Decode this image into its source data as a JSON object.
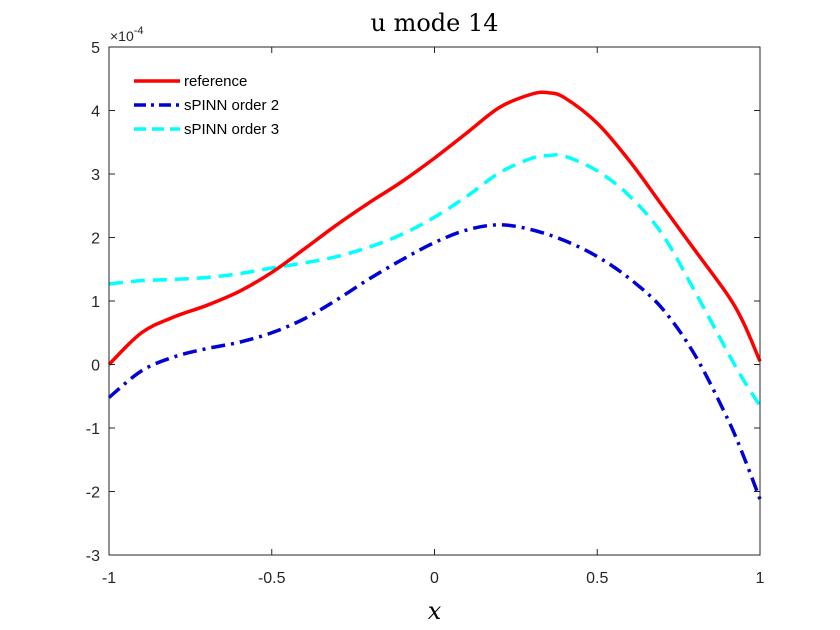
{
  "chart_data": {
    "type": "line",
    "title": "u mode 14",
    "xlabel": "x",
    "ylabel": "",
    "xlim": [
      -1,
      1
    ],
    "ylim": [
      -3,
      5
    ],
    "xticks": [
      -1,
      -0.5,
      0,
      0.5,
      1
    ],
    "xtick_labels": [
      "-1",
      "-0.5",
      "0",
      "0.5",
      "1"
    ],
    "yticks": [
      -3,
      -2,
      -1,
      0,
      1,
      2,
      3,
      4,
      5
    ],
    "ytick_labels": [
      "-3",
      "-2",
      "-1",
      "0",
      "1",
      "2",
      "3",
      "4",
      "5"
    ],
    "y_exponent": {
      "prefix": "×10",
      "power": "-4"
    },
    "grid": false,
    "legend_position": "top-left",
    "series": [
      {
        "name": "reference",
        "color": "#ff0000",
        "style": "solid",
        "x": [
          -1,
          -0.9,
          -0.8,
          -0.7,
          -0.6,
          -0.5,
          -0.4,
          -0.3,
          -0.2,
          -0.1,
          0,
          0.1,
          0.2,
          0.3,
          0.35,
          0.4,
          0.5,
          0.6,
          0.7,
          0.8,
          0.9,
          0.95,
          1
        ],
        "y": [
          0,
          0.5,
          0.75,
          0.93,
          1.15,
          1.45,
          1.82,
          2.2,
          2.55,
          2.88,
          3.25,
          3.65,
          4.05,
          4.26,
          4.28,
          4.2,
          3.8,
          3.2,
          2.5,
          1.8,
          1.1,
          0.65,
          0.05
        ]
      },
      {
        "name": "sPINN order 2",
        "color": "#0000d9",
        "style": "dashdot",
        "x": [
          -1,
          -0.9,
          -0.8,
          -0.7,
          -0.6,
          -0.5,
          -0.4,
          -0.3,
          -0.2,
          -0.1,
          0,
          0.1,
          0.2,
          0.3,
          0.4,
          0.5,
          0.6,
          0.7,
          0.8,
          0.9,
          0.95,
          1
        ],
        "y": [
          -0.52,
          -0.1,
          0.12,
          0.25,
          0.35,
          0.5,
          0.72,
          1.02,
          1.35,
          1.65,
          1.92,
          2.12,
          2.2,
          2.12,
          1.95,
          1.7,
          1.35,
          0.88,
          0.15,
          -0.85,
          -1.45,
          -2.12
        ]
      },
      {
        "name": "sPINN order 3",
        "color": "#00ffff",
        "style": "dashed",
        "x": [
          -1,
          -0.9,
          -0.8,
          -0.7,
          -0.6,
          -0.5,
          -0.4,
          -0.3,
          -0.2,
          -0.1,
          0,
          0.1,
          0.2,
          0.3,
          0.35,
          0.4,
          0.5,
          0.6,
          0.7,
          0.8,
          0.9,
          0.95,
          1
        ],
        "y": [
          1.27,
          1.32,
          1.34,
          1.37,
          1.43,
          1.52,
          1.6,
          1.7,
          1.85,
          2.05,
          2.32,
          2.65,
          3.02,
          3.25,
          3.29,
          3.28,
          3.05,
          2.65,
          2.05,
          1.15,
          0.2,
          -0.25,
          -0.65
        ]
      }
    ]
  }
}
